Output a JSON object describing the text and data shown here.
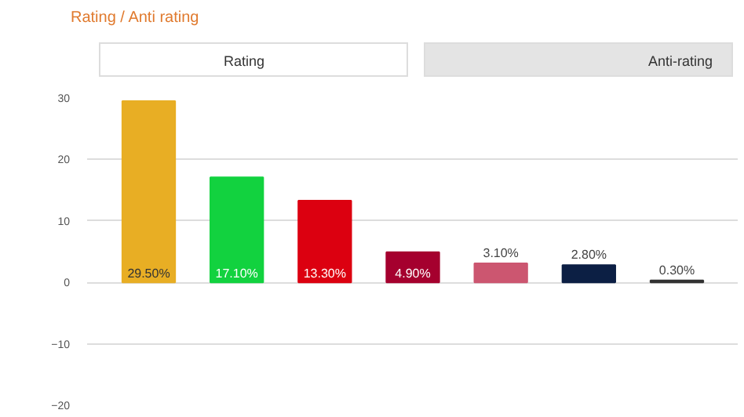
{
  "chart_data": {
    "type": "bar",
    "title": "Rating / Anti rating",
    "annotations": [
      "Rating",
      "Anti-rating"
    ],
    "categories": [
      null,
      null,
      null,
      null,
      null,
      null,
      null
    ],
    "values": [
      29.5,
      17.1,
      13.3,
      4.9,
      3.1,
      2.8,
      0.3
    ],
    "value_labels": [
      "29.50%",
      "17.10%",
      "13.30%",
      "4.90%",
      "3.10%",
      "2.80%",
      "0.30%"
    ],
    "colors": [
      "#e8ae24",
      "#12d23f",
      "#dc0010",
      "#a5002e",
      "#cc5670",
      "#0c1f44",
      "#333333"
    ],
    "ylim": [
      -20,
      30
    ],
    "yticks": [
      -20,
      -10,
      0,
      10,
      20,
      30
    ],
    "grid": "y"
  }
}
